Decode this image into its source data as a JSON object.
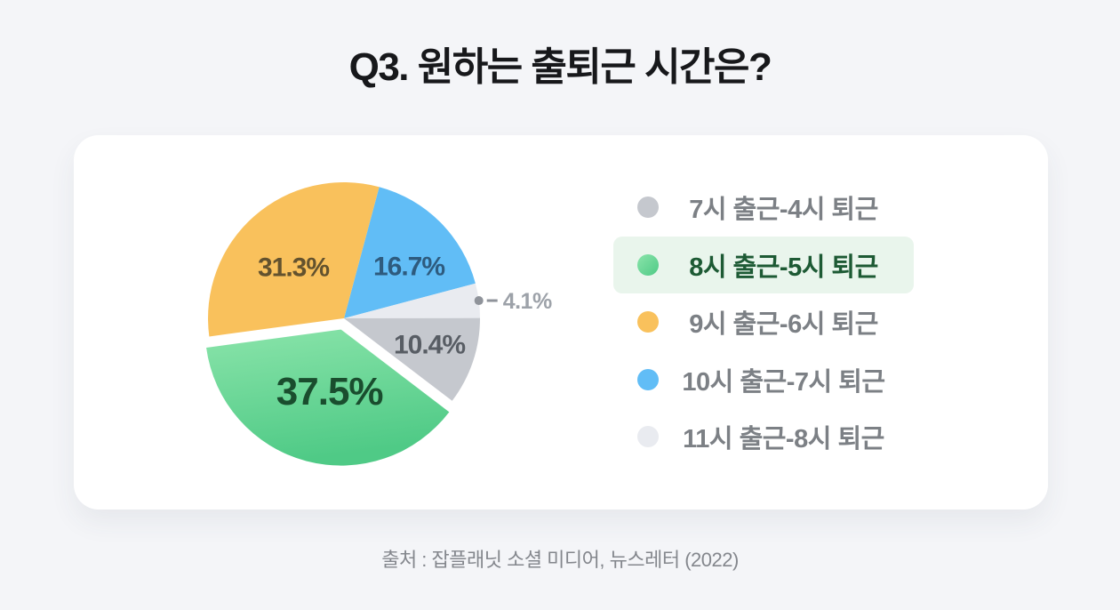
{
  "page": {
    "background": "#F4F5F8",
    "card_background": "#FFFFFF"
  },
  "title": "Q3. 원하는 출퇴근 시간은?",
  "source": "출처 : 잡플래닛 소셜 미디어, 뉴스레터 (2022)",
  "chart_data": {
    "type": "pie",
    "title": "Q3. 원하는 출퇴근 시간은?",
    "unit": "%",
    "categories": [
      "7시 출근-4시 퇴근",
      "8시 출근-5시 퇴근",
      "9시 출근-6시 퇴근",
      "10시 출근-7시 퇴근",
      "11시 출근-8시 퇴근"
    ],
    "values": [
      10.4,
      37.5,
      31.3,
      16.7,
      4.1
    ],
    "value_labels": [
      "10.4%",
      "37.5%",
      "31.3%",
      "16.7%",
      "4.1%"
    ],
    "colors": [
      "#C5C8CE",
      "#5BD08C",
      "#F9C15C",
      "#61BDF6",
      "#E9EBF0"
    ],
    "value_label_colors": [
      "#585D64",
      "#1A4D2E",
      "#63522E",
      "#2E5B7E",
      "#9DA2A9"
    ],
    "callout_color": "#8F939A",
    "legend_position": "right",
    "legend_text_color": "#7C8085",
    "highlight": {
      "index": 1,
      "gradient": [
        "#8AE4AA",
        "#4FCA86"
      ],
      "legend_background": "#E9F5EC",
      "legend_text_color": "#1D5A34"
    },
    "layout": {
      "start_angle_deg": 15,
      "direction": "clockwise",
      "draw_order": [
        3,
        4,
        0,
        1,
        2
      ],
      "exploded_index": 1,
      "callout_index": 4,
      "legend_grid": false
    }
  }
}
